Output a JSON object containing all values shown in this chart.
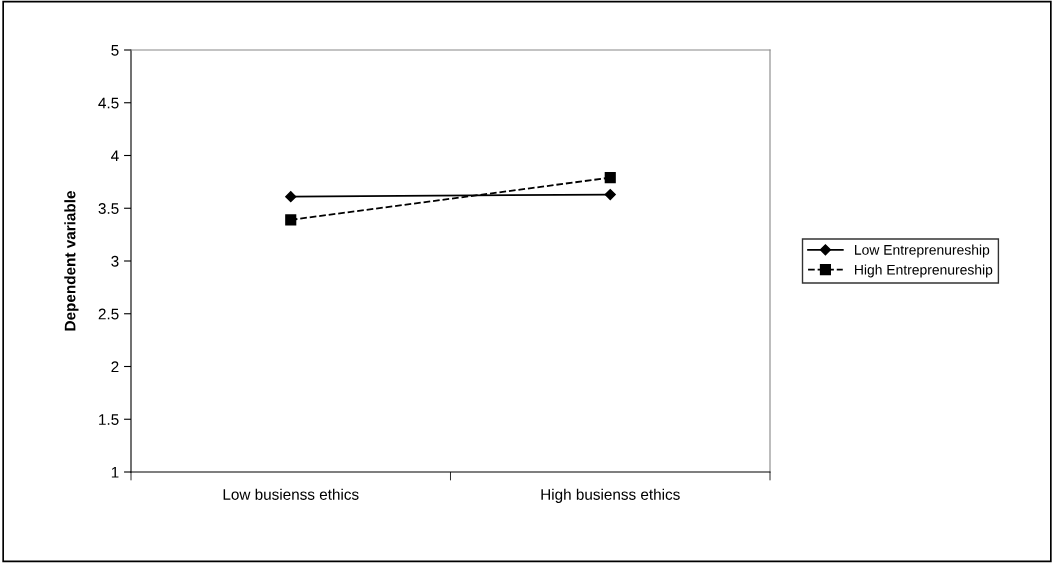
{
  "chart_data": {
    "type": "line",
    "ylabel": "Dependent variable",
    "categories": [
      "Low busienss ethics",
      "High busienss ethics"
    ],
    "series": [
      {
        "name": "Low Entreprenureship",
        "color": "#000000",
        "values": [
          3.61,
          3.63
        ],
        "marker": "diamond",
        "line_style": "solid"
      },
      {
        "name": "High Entreprenureship",
        "color": "#000000",
        "values": [
          3.39,
          3.79
        ],
        "marker": "square",
        "line_style": "dashed"
      }
    ],
    "ylim": [
      1,
      5
    ],
    "yticks": [
      1,
      1.5,
      2,
      2.5,
      3,
      3.5,
      4,
      4.5,
      5
    ],
    "grid": false,
    "legend": "right"
  }
}
